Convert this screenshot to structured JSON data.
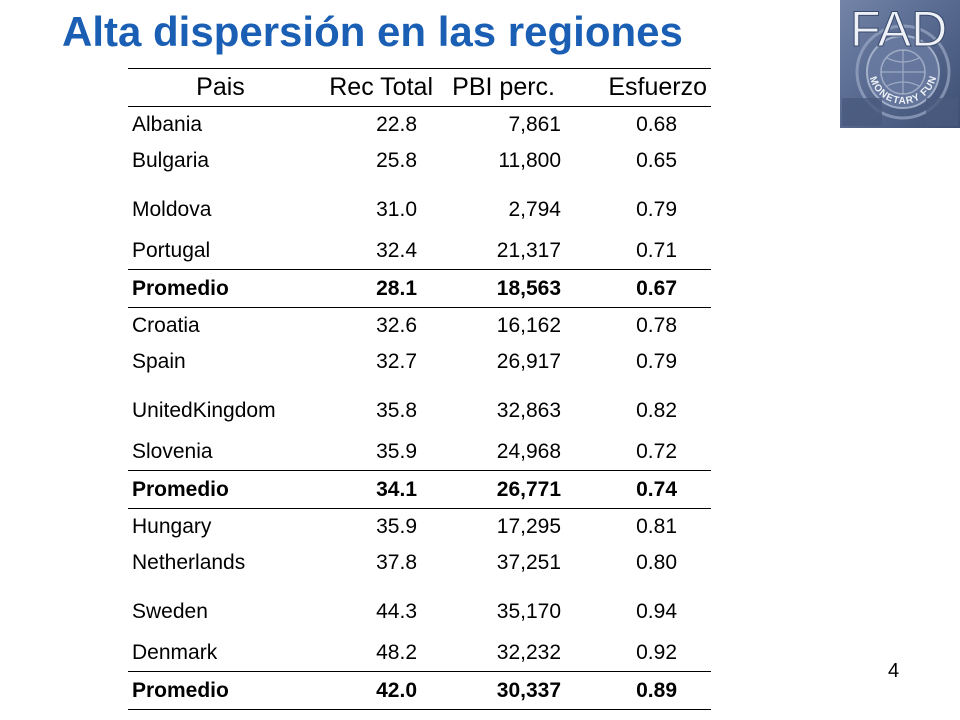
{
  "slide": {
    "title": "Alta dispersión en las regiones",
    "logo_text": "FAD",
    "logo_seal_text": "MONETARY FUND",
    "page_number": "4"
  },
  "table": {
    "headers": {
      "pais": "Pais",
      "rec_total": "Rec Total",
      "pbi_perc": "PBI perc.",
      "esfuerzo": "Esfuerzo"
    },
    "groups": [
      {
        "rows": [
          {
            "pais": "Albania",
            "rec": "22.8",
            "pbi": "7,861",
            "esf": "0.68"
          },
          {
            "pais": "Bulgaria",
            "rec": "25.8",
            "pbi": "11,800",
            "esf": "0.65"
          },
          {
            "pais": "Moldova",
            "rec": "31.0",
            "pbi": "2,794",
            "esf": "0.79"
          },
          {
            "pais": "Portugal",
            "rec": "32.4",
            "pbi": "21,317",
            "esf": "0.71"
          }
        ],
        "average": {
          "pais": "Promedio",
          "rec": "28.1",
          "pbi": "18,563",
          "esf": "0.67"
        }
      },
      {
        "rows": [
          {
            "pais": "Croatia",
            "rec": "32.6",
            "pbi": "16,162",
            "esf": "0.78"
          },
          {
            "pais": "Spain",
            "rec": "32.7",
            "pbi": "26,917",
            "esf": "0.79"
          },
          {
            "pais": "UnitedKingdom",
            "rec": "35.8",
            "pbi": "32,863",
            "esf": "0.82"
          },
          {
            "pais": "Slovenia",
            "rec": "35.9",
            "pbi": "24,968",
            "esf": "0.72"
          }
        ],
        "average": {
          "pais": "Promedio",
          "rec": "34.1",
          "pbi": "26,771",
          "esf": "0.74"
        }
      },
      {
        "rows": [
          {
            "pais": "Hungary",
            "rec": "35.9",
            "pbi": "17,295",
            "esf": "0.81"
          },
          {
            "pais": "Netherlands",
            "rec": "37.8",
            "pbi": "37,251",
            "esf": "0.80"
          },
          {
            "pais": "Sweden",
            "rec": "44.3",
            "pbi": "35,170",
            "esf": "0.94"
          },
          {
            "pais": "Denmark",
            "rec": "48.2",
            "pbi": "32,232",
            "esf": "0.92"
          }
        ],
        "average": {
          "pais": "Promedio",
          "rec": "42.0",
          "pbi": "30,337",
          "esf": "0.89"
        }
      }
    ]
  },
  "colors": {
    "title": "#1a5fb4",
    "logo_background": "#5a6f95",
    "logo_text": "#e8edf5"
  }
}
